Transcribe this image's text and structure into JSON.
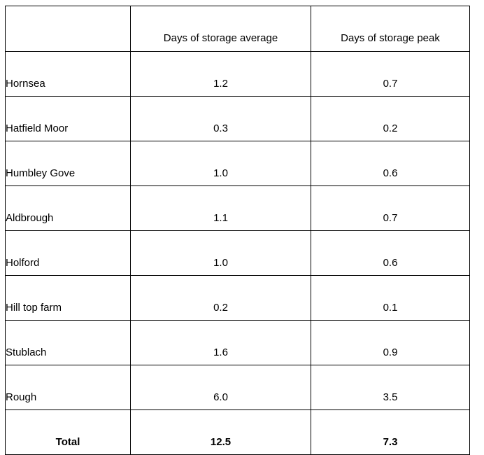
{
  "chart_data": {
    "type": "table",
    "title": "",
    "columns": [
      "",
      "Days of storage average",
      "Days of storage peak"
    ],
    "rows": [
      [
        "Hornsea",
        1.2,
        0.7
      ],
      [
        "Hatfield Moor",
        0.3,
        0.2
      ],
      [
        "Humbley Gove",
        1.0,
        0.6
      ],
      [
        "Aldbrough",
        1.1,
        0.7
      ],
      [
        "Holford",
        1.0,
        0.6
      ],
      [
        "Hill top farm",
        0.2,
        0.1
      ],
      [
        "Stublach",
        1.6,
        0.9
      ],
      [
        "Rough",
        6.0,
        3.5
      ],
      [
        "Total",
        12.5,
        7.3
      ]
    ]
  },
  "table": {
    "header": {
      "col1": "",
      "col2": "Days of storage average",
      "col3": "Days of storage peak"
    },
    "rows": [
      {
        "label": "Hornsea",
        "average": "1.2",
        "peak": "0.7"
      },
      {
        "label": "Hatfield Moor",
        "average": "0.3",
        "peak": "0.2"
      },
      {
        "label": "Humbley Gove",
        "average": "1.0",
        "peak": "0.6"
      },
      {
        "label": "Aldbrough",
        "average": "1.1",
        "peak": "0.7"
      },
      {
        "label": "Holford",
        "average": "1.0",
        "peak": "0.6"
      },
      {
        "label": "Hill top farm",
        "average": "0.2",
        "peak": "0.1"
      },
      {
        "label": "Stublach",
        "average": "1.6",
        "peak": "0.9"
      },
      {
        "label": "Rough",
        "average": "6.0",
        "peak": "3.5"
      }
    ],
    "total": {
      "label": "Total",
      "average": "12.5",
      "peak": "7.3"
    }
  },
  "colors": {
    "border": "#000000",
    "text": "#000000",
    "background": "#ffffff"
  }
}
